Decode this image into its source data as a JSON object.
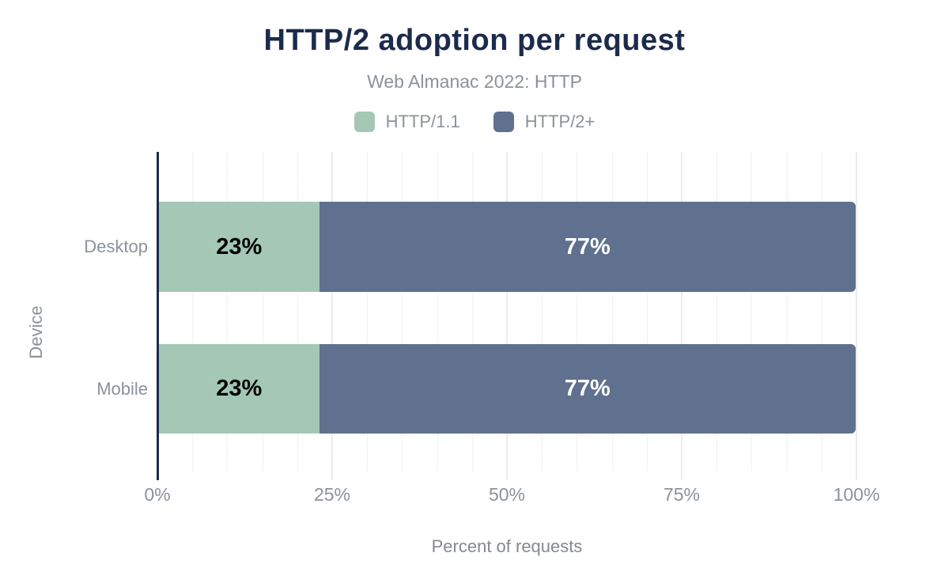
{
  "title": "HTTP/2 adoption per request",
  "subtitle": "Web Almanac 2022: HTTP",
  "colors": {
    "title_text": "#1b2b4c",
    "axis_line": "#1b2b4c",
    "muted_text": "#8a929b",
    "http11_green": "#a4c8b5",
    "http2_blue": "#5f718e",
    "gridline_major": "#ececec",
    "gridline_minor": "#e4e4e4"
  },
  "legend": [
    {
      "label": "HTTP/1.1",
      "color": "#a4c8b5"
    },
    {
      "label": "HTTP/2+",
      "color": "#5f718e"
    }
  ],
  "chart_data": {
    "type": "bar",
    "orientation": "horizontal",
    "stacked": true,
    "title": "HTTP/2 adoption per request",
    "subtitle": "Web Almanac 2022: HTTP",
    "categories": [
      "Desktop",
      "Mobile"
    ],
    "series": [
      {
        "name": "HTTP/1.1",
        "values": [
          23,
          23
        ],
        "color": "#a4c8b5",
        "label_color": "#000000"
      },
      {
        "name": "HTTP/2+",
        "values": [
          77,
          77
        ],
        "color": "#5f718e",
        "label_color": "#ffffff"
      }
    ],
    "value_suffix": "%",
    "xlabel": "Percent of requests",
    "ylabel": "Device",
    "x_ticks": [
      "0%",
      "25%",
      "50%",
      "75%",
      "100%"
    ],
    "x_tick_positions": [
      0,
      25,
      50,
      75,
      100
    ],
    "xlim": [
      0,
      100
    ],
    "grid": "vertical; minor dotted every 5%, major solid every 25%",
    "legend_position": "top"
  }
}
